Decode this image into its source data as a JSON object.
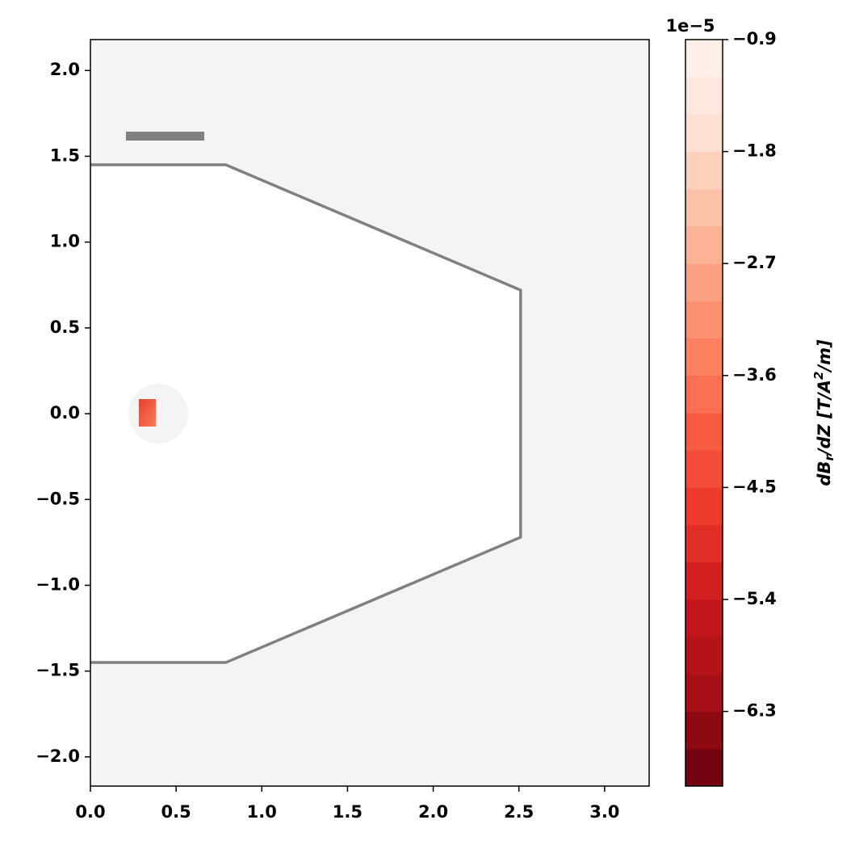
{
  "chart_data": {
    "type": "contour",
    "xlim": [
      0,
      3.26
    ],
    "ylim": [
      -2.17,
      2.18
    ],
    "xticks": [
      {
        "value": 0,
        "label": "0.0"
      },
      {
        "value": 0.5,
        "label": "0.5"
      },
      {
        "value": 1,
        "label": "1.0"
      },
      {
        "value": 1.5,
        "label": "1.5"
      },
      {
        "value": 2,
        "label": "2.0"
      },
      {
        "value": 2.5,
        "label": "2.5"
      },
      {
        "value": 3,
        "label": "3.0"
      }
    ],
    "yticks": [
      {
        "value": -2,
        "label": "−2.0"
      },
      {
        "value": -1.5,
        "label": "−1.5"
      },
      {
        "value": -1,
        "label": "−1.0"
      },
      {
        "value": -0.5,
        "label": "−0.5"
      },
      {
        "value": 0,
        "label": "0.0"
      },
      {
        "value": 0.5,
        "label": "0.5"
      },
      {
        "value": 1,
        "label": "1.0"
      },
      {
        "value": 1.5,
        "label": "1.5"
      },
      {
        "value": 2,
        "label": "2.0"
      }
    ],
    "wall": {
      "color": "#808080",
      "x": [
        0,
        0.79,
        2.51,
        2.51,
        0.79,
        0
      ],
      "y": [
        1.45,
        1.45,
        0.72,
        -0.72,
        -1.45,
        -1.45
      ]
    },
    "colorbar": {
      "label": [
        "dB",
        "r",
        "/dZ [T/A",
        "2",
        "/m]"
      ],
      "offset_label": "1e−5",
      "lim": [
        -6.9,
        -0.9
      ],
      "ticks": [
        {
          "value": -0.9,
          "label": "−0.9"
        },
        {
          "value": -1.8,
          "label": "−1.8"
        },
        {
          "value": -2.7,
          "label": "−2.7"
        },
        {
          "value": -3.6,
          "label": "−3.6"
        },
        {
          "value": -4.5,
          "label": "−4.5"
        },
        {
          "value": -5.4,
          "label": "−5.4"
        },
        {
          "value": -6.3,
          "label": "−6.3"
        }
      ],
      "levels": [
        -6.9,
        -6.6,
        -6.3,
        -6.0,
        -5.7,
        -5.4,
        -5.1,
        -4.8,
        -4.5,
        -4.2,
        -3.9,
        -3.6,
        -3.3,
        -3.0,
        -2.7,
        -2.4,
        -2.1,
        -1.8,
        -1.5,
        -1.2,
        -0.9
      ],
      "colors": [
        "#73030f",
        "#8c0912",
        "#a50f15",
        "#b41318",
        "#c3161b",
        "#d21f20",
        "#e02d26",
        "#ef3b2c",
        "#f34c37",
        "#f75c41",
        "#fb7050",
        "#fb8161",
        "#fc9272",
        "#fca283",
        "#fcb295",
        "#fcc2a8",
        "#fdd0bc",
        "#fee0d2",
        "#fee8de",
        "#ffefe8"
      ]
    }
  }
}
